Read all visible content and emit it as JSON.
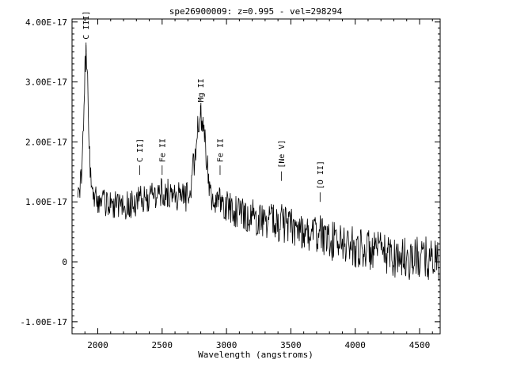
{
  "chart_data": {
    "type": "line",
    "title": "spe26900009: z=0.995 - vel=298294",
    "xlabel": "Wavelength (angstroms)",
    "ylabel": "",
    "xlim": [
      1800,
      4660
    ],
    "ylim": [
      -1.2e-17,
      4.05e-17
    ],
    "xticks": [
      2000,
      2500,
      3000,
      3500,
      4000,
      4500
    ],
    "xtick_labels": [
      "2000",
      "2500",
      "3000",
      "3500",
      "4000",
      "4500"
    ],
    "yticks": [
      -1e-17,
      0,
      1e-17,
      2e-17,
      3e-17,
      4e-17
    ],
    "ytick_labels": [
      "-1.00E-17",
      "0",
      "1.00E-17",
      "2.00E-17",
      "3.00E-17",
      "4.00E-17"
    ],
    "grid": false,
    "line_color": "#000000",
    "spectrum": {
      "name": "flux",
      "x_start": 1845,
      "x_end": 4650,
      "continuum": [
        [
          1845,
          1.25e-17
        ],
        [
          1950,
          1.05e-17
        ],
        [
          2200,
          9.2e-18
        ],
        [
          2500,
          1.15e-17
        ],
        [
          2900,
          1e-17
        ],
        [
          3200,
          7.5e-18
        ],
        [
          3500,
          6e-18
        ],
        [
          3800,
          3.5e-18
        ],
        [
          4100,
          2e-18
        ],
        [
          4400,
          5e-19
        ],
        [
          4650,
          5e-19
        ]
      ],
      "emission_features": [
        {
          "x": 1909,
          "amplitude": 2.3e-17,
          "width": 18
        },
        {
          "x": 2798,
          "amplitude": 1.35e-17,
          "width": 40
        },
        {
          "x": 3426,
          "amplitude": 5e-18,
          "width": 6
        },
        {
          "x": 3727,
          "amplitude": 3e-18,
          "width": 8
        }
      ],
      "noise_amplitude": 2.2e-18,
      "noise_growth": 1.6e-18
    },
    "annotations": [
      {
        "label": "C III]",
        "x": 1909,
        "y": 3.5e-17
      },
      {
        "label": "C II]",
        "x": 2326,
        "y": 1.45e-17
      },
      {
        "label": "Fe II",
        "x": 2500,
        "y": 1.45e-17
      },
      {
        "label": "Mg II",
        "x": 2798,
        "y": 2.45e-17
      },
      {
        "label": "Fe II",
        "x": 2950,
        "y": 1.45e-17
      },
      {
        "label": "[Ne V]",
        "x": 3426,
        "y": 1.35e-17
      },
      {
        "label": "[O II]",
        "x": 3727,
        "y": 1e-17
      }
    ]
  }
}
